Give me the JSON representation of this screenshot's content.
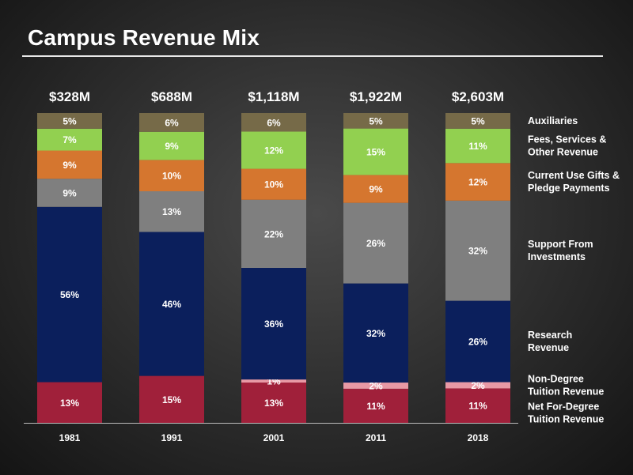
{
  "page": {
    "title": "Campus Revenue Mix"
  },
  "chart_data": {
    "type": "bar",
    "stacked": true,
    "normalized": true,
    "title": "Campus Revenue Mix",
    "categories": [
      "1981",
      "1991",
      "2001",
      "2011",
      "2018"
    ],
    "totals": [
      "$328M",
      "$688M",
      "$1,118M",
      "$1,922M",
      "$2,603M"
    ],
    "ylim": [
      0,
      100
    ],
    "legend_position": "right",
    "series": [
      {
        "name": "Net For-Degree Tuition Revenue",
        "label_lines": [
          "Net For-Degree",
          "Tuition Revenue"
        ],
        "color": "#A0203A",
        "values": [
          13,
          15,
          13,
          11,
          11
        ]
      },
      {
        "name": "Non-Degree Tuition Revenue",
        "label_lines": [
          "Non-Degree",
          "Tuition Revenue"
        ],
        "color": "#E899A5",
        "values": [
          0,
          0,
          1,
          2,
          2
        ]
      },
      {
        "name": "Research Revenue",
        "label_lines": [
          "Research",
          "Revenue"
        ],
        "color": "#0B1F5C",
        "values": [
          56,
          46,
          36,
          32,
          26
        ]
      },
      {
        "name": "Support From Investments",
        "label_lines": [
          "Support From",
          "Investments"
        ],
        "color": "#7F7F7F",
        "values": [
          9,
          13,
          22,
          26,
          32
        ]
      },
      {
        "name": "Current Use Gifts & Pledge Payments",
        "label_lines": [
          "Current Use Gifts &",
          "Pledge Payments"
        ],
        "color": "#D5762F",
        "values": [
          9,
          10,
          10,
          9,
          12
        ]
      },
      {
        "name": "Fees, Services & Other Revenue",
        "label_lines": [
          "Fees, Services &",
          "Other Revenue"
        ],
        "color": "#92D050",
        "values": [
          7,
          9,
          12,
          15,
          11
        ]
      },
      {
        "name": "Auxiliaries",
        "label_lines": [
          "Auxiliaries"
        ],
        "color": "#766A48",
        "values": [
          5,
          6,
          6,
          5,
          5
        ]
      }
    ]
  }
}
